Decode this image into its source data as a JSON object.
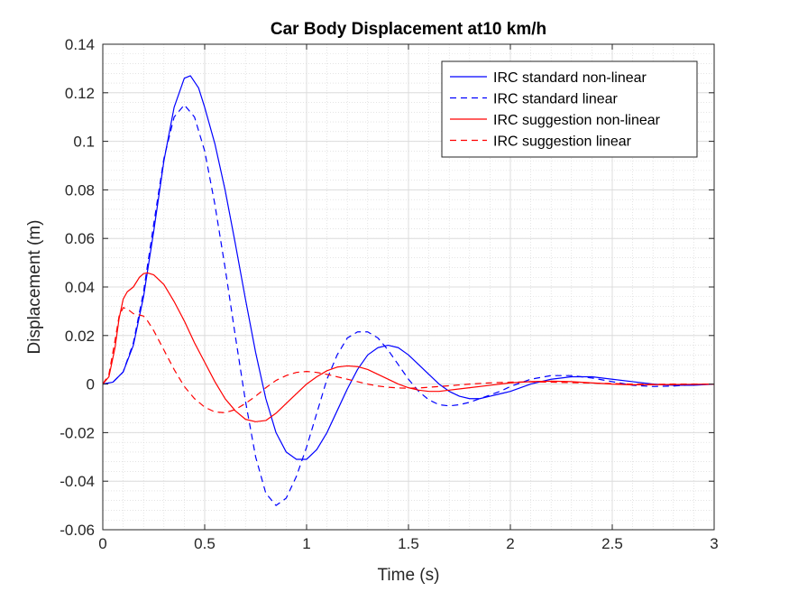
{
  "chart_data": {
    "type": "line",
    "title": "Car Body Displacement at10 km/h",
    "xlabel": "Time (s)",
    "ylabel": "Displacement (m)",
    "xlim": [
      0,
      3
    ],
    "ylim": [
      -0.06,
      0.14
    ],
    "xticks": [
      0,
      0.5,
      1,
      1.5,
      2,
      2.5,
      3
    ],
    "xtick_labels": [
      "0",
      "0.5",
      "1",
      "1.5",
      "2",
      "2.5",
      "3"
    ],
    "yticks": [
      -0.06,
      -0.04,
      -0.02,
      0,
      0.02,
      0.04,
      0.06,
      0.08,
      0.1,
      0.12,
      0.14
    ],
    "ytick_labels": [
      "-0.06",
      "-0.04",
      "-0.02",
      "0",
      "0.02",
      "0.04",
      "0.06",
      "0.08",
      "0.1",
      "0.12",
      "0.14"
    ],
    "grid": true,
    "minor_grid": true,
    "legend_position": "top-right",
    "series": [
      {
        "name": "IRC standard non-linear",
        "color": "#0000ff",
        "dash": "solid",
        "x": [
          0,
          0.05,
          0.1,
          0.15,
          0.2,
          0.25,
          0.3,
          0.35,
          0.4,
          0.43,
          0.47,
          0.5,
          0.55,
          0.6,
          0.65,
          0.7,
          0.75,
          0.8,
          0.85,
          0.9,
          0.95,
          1.0,
          1.05,
          1.1,
          1.15,
          1.2,
          1.25,
          1.3,
          1.35,
          1.4,
          1.45,
          1.5,
          1.55,
          1.6,
          1.65,
          1.7,
          1.75,
          1.8,
          1.85,
          1.9,
          1.95,
          2.0,
          2.1,
          2.2,
          2.3,
          2.4,
          2.5,
          2.6,
          2.7,
          2.8,
          2.9,
          3.0
        ],
        "y": [
          0,
          0.0008,
          0.005,
          0.016,
          0.036,
          0.063,
          0.092,
          0.114,
          0.126,
          0.127,
          0.122,
          0.114,
          0.099,
          0.08,
          0.058,
          0.035,
          0.013,
          -0.006,
          -0.02,
          -0.028,
          -0.031,
          -0.031,
          -0.027,
          -0.02,
          -0.011,
          -0.002,
          0.006,
          0.012,
          0.015,
          0.016,
          0.015,
          0.012,
          0.008,
          0.004,
          0.0,
          -0.003,
          -0.005,
          -0.006,
          -0.006,
          -0.005,
          -0.004,
          -0.003,
          0.0,
          0.002,
          0.003,
          0.003,
          0.002,
          0.001,
          0.0,
          -0.0005,
          -0.0005,
          0.0
        ]
      },
      {
        "name": "IRC standard linear",
        "color": "#0000ff",
        "dash": "dashed",
        "x": [
          0,
          0.05,
          0.1,
          0.15,
          0.2,
          0.25,
          0.3,
          0.35,
          0.4,
          0.45,
          0.5,
          0.55,
          0.6,
          0.65,
          0.7,
          0.75,
          0.8,
          0.85,
          0.9,
          0.95,
          1.0,
          1.05,
          1.1,
          1.15,
          1.2,
          1.25,
          1.3,
          1.35,
          1.4,
          1.45,
          1.5,
          1.55,
          1.6,
          1.65,
          1.7,
          1.75,
          1.8,
          1.85,
          1.9,
          1.95,
          2.0,
          2.1,
          2.2,
          2.3,
          2.4,
          2.5,
          2.6,
          2.7,
          2.8,
          2.9,
          3.0
        ],
        "y": [
          0,
          0.0008,
          0.005,
          0.017,
          0.038,
          0.066,
          0.093,
          0.11,
          0.115,
          0.11,
          0.096,
          0.074,
          0.048,
          0.02,
          -0.007,
          -0.03,
          -0.045,
          -0.05,
          -0.047,
          -0.038,
          -0.026,
          -0.012,
          0.002,
          0.012,
          0.019,
          0.0215,
          0.0215,
          0.019,
          0.014,
          0.008,
          0.002,
          -0.003,
          -0.0065,
          -0.0085,
          -0.009,
          -0.0085,
          -0.0075,
          -0.006,
          -0.0045,
          -0.003,
          -0.001,
          0.002,
          0.0035,
          0.0035,
          0.0025,
          0.001,
          -0.0005,
          -0.001,
          -0.0008,
          -0.0003,
          0.0
        ]
      },
      {
        "name": "IRC suggestion non-linear",
        "color": "#ff0000",
        "dash": "solid",
        "x": [
          0,
          0.03,
          0.06,
          0.08,
          0.1,
          0.12,
          0.15,
          0.18,
          0.2,
          0.22,
          0.25,
          0.3,
          0.35,
          0.4,
          0.45,
          0.5,
          0.55,
          0.6,
          0.65,
          0.7,
          0.75,
          0.8,
          0.85,
          0.9,
          0.95,
          1.0,
          1.05,
          1.1,
          1.15,
          1.2,
          1.25,
          1.3,
          1.35,
          1.4,
          1.45,
          1.5,
          1.55,
          1.6,
          1.65,
          1.7,
          1.8,
          1.9,
          2.0,
          2.1,
          2.2,
          2.3,
          2.4,
          2.5,
          2.6,
          2.8,
          3.0
        ],
        "y": [
          0,
          0.003,
          0.015,
          0.027,
          0.035,
          0.038,
          0.04,
          0.044,
          0.0455,
          0.0458,
          0.045,
          0.041,
          0.034,
          0.026,
          0.017,
          0.009,
          0.001,
          -0.006,
          -0.011,
          -0.0145,
          -0.0155,
          -0.015,
          -0.012,
          -0.008,
          -0.004,
          0.0,
          0.003,
          0.0055,
          0.007,
          0.0075,
          0.0072,
          0.006,
          0.004,
          0.002,
          0.0,
          -0.0015,
          -0.0025,
          -0.003,
          -0.003,
          -0.0025,
          -0.0015,
          -0.0005,
          0.0005,
          0.001,
          0.0012,
          0.001,
          0.0005,
          0.0,
          -0.0003,
          -0.0002,
          0.0
        ]
      },
      {
        "name": "IRC suggestion linear",
        "color": "#ff0000",
        "dash": "dashed",
        "x": [
          0,
          0.03,
          0.06,
          0.08,
          0.1,
          0.12,
          0.15,
          0.18,
          0.2,
          0.22,
          0.25,
          0.3,
          0.35,
          0.4,
          0.45,
          0.5,
          0.55,
          0.6,
          0.65,
          0.7,
          0.75,
          0.8,
          0.85,
          0.9,
          0.95,
          1.0,
          1.05,
          1.1,
          1.15,
          1.2,
          1.25,
          1.3,
          1.35,
          1.4,
          1.45,
          1.5,
          1.55,
          1.6,
          1.7,
          1.8,
          1.9,
          2.0,
          2.1,
          2.2,
          2.3,
          2.4,
          2.5,
          2.6,
          2.7,
          2.8,
          3.0
        ],
        "y": [
          0,
          0.004,
          0.018,
          0.028,
          0.0315,
          0.031,
          0.029,
          0.0285,
          0.028,
          0.026,
          0.022,
          0.014,
          0.006,
          -0.001,
          -0.006,
          -0.0095,
          -0.0115,
          -0.0118,
          -0.0105,
          -0.008,
          -0.005,
          -0.0015,
          0.0015,
          0.0035,
          0.0048,
          0.0052,
          0.0048,
          0.004,
          0.003,
          0.002,
          0.001,
          0.0,
          -0.0008,
          -0.0013,
          -0.0016,
          -0.0017,
          -0.0016,
          -0.0013,
          -0.0007,
          0.0,
          0.0005,
          0.0008,
          0.0009,
          0.0008,
          0.0006,
          0.0004,
          0.0002,
          0.0,
          -0.0001,
          0.0,
          0.0
        ]
      }
    ]
  }
}
